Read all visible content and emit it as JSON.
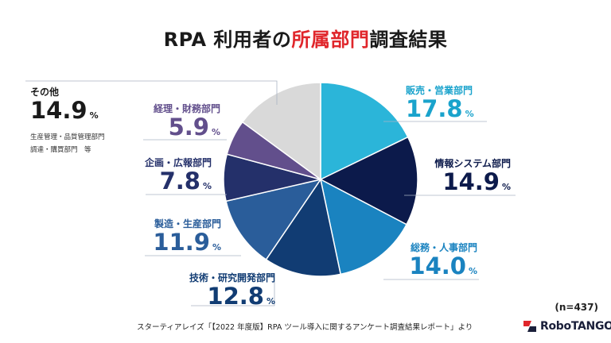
{
  "title": {
    "prefix": "RPA 利用者の",
    "highlight": "所属部門",
    "suffix": "調査結果"
  },
  "chart_data": {
    "type": "pie",
    "categories": [
      "販売・営業部門",
      "情報システム部門",
      "総務・人事部門",
      "技術・研究開発部門",
      "製造・生産部門",
      "企画・広報部門",
      "経理・財務部門",
      "その他"
    ],
    "values": [
      17.8,
      14.9,
      14.0,
      12.8,
      11.9,
      7.8,
      5.9,
      14.9
    ],
    "value_labels": [
      "17.8",
      "14.9",
      "14.0",
      "12.8",
      "11.9",
      "7.8",
      "5.9",
      "14.9"
    ],
    "unit": "%",
    "colors": [
      "#2bb5d9",
      "#0c1a4b",
      "#1a83c0",
      "#113c73",
      "#2a5d9a",
      "#24306a",
      "#624f8c",
      "#d9d9d9"
    ],
    "label_colors": [
      "#1aa3cc",
      "#0c1a4b",
      "#1a83c0",
      "#113c73",
      "#2a5d9a",
      "#24306a",
      "#624f8c",
      "#1a1a1a"
    ],
    "legend": "none",
    "other_note_lines": [
      "生産管理・品質管理部門",
      "調達・購買部門　等"
    ]
  },
  "sample_size": "(n=437)",
  "source": "スターティアレイズ「【2022 年度版】RPA ツール導入に関するアンケート調査結果レポート」より",
  "logo": {
    "text": "RoboTANGO",
    "colors": {
      "red": "#e0262b",
      "navy": "#1a1f3a"
    }
  }
}
